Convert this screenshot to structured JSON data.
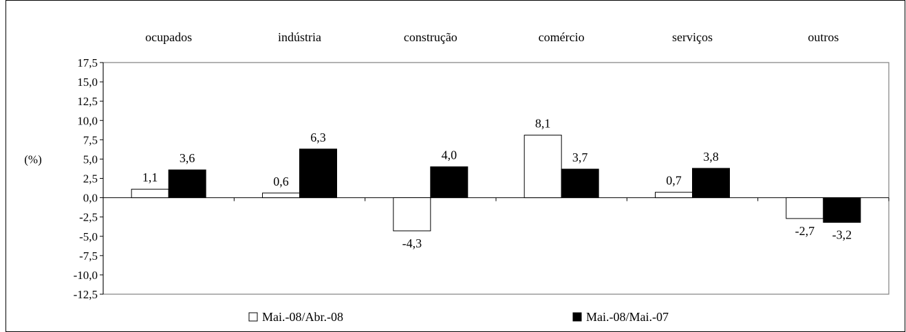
{
  "chart_data": {
    "type": "bar",
    "categories": [
      "ocupados",
      "indústria",
      "construção",
      "comércio",
      "serviços",
      "outros"
    ],
    "series": [
      {
        "name": "Mai.-08/Abr.-08",
        "values": [
          1.1,
          0.6,
          -4.3,
          8.1,
          0.7,
          -2.7
        ],
        "labels": [
          "1,1",
          "0,6",
          "-4,3",
          "8,1",
          "0,7",
          "-2,7"
        ],
        "fill": "#ffffff"
      },
      {
        "name": "Mai.-08/Mai.-07",
        "values": [
          3.6,
          6.3,
          4.0,
          3.7,
          3.8,
          -3.2
        ],
        "labels": [
          "3,6",
          "6,3",
          "4,0",
          "3,7",
          "3,8",
          "-3,2"
        ],
        "fill": "#000000"
      }
    ],
    "ylabel": "(%)",
    "ylim": [
      -12.5,
      17.5
    ],
    "yticks": [
      17.5,
      15.0,
      12.5,
      10.0,
      7.5,
      5.0,
      2.5,
      0.0,
      -2.5,
      -5.0,
      -7.5,
      -10.0,
      -12.5
    ],
    "ytick_labels": [
      "17,5",
      "15,0",
      "12,5",
      "10,0",
      "7,5",
      "5,0",
      "2,5",
      "0,0",
      "-2,5",
      "-5,0",
      "-7,5",
      "-10,0",
      "-12,5"
    ],
    "grid": false,
    "legend_position": "bottom",
    "category_labels_position": "top"
  }
}
